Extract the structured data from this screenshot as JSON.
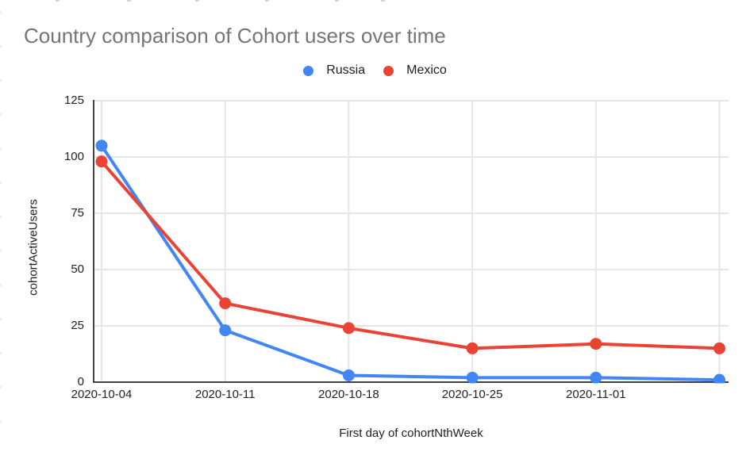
{
  "chart_data": {
    "type": "line",
    "title": "Country comparison of Cohort users over time",
    "xlabel": "First day of cohortNthWeek",
    "ylabel": "cohortActiveUsers",
    "categories": [
      "2020-10-04",
      "2020-10-11",
      "2020-10-18",
      "2020-10-25",
      "2020-11-01",
      ""
    ],
    "series": [
      {
        "name": "Russia",
        "color": "#4285F4",
        "values": [
          105,
          23,
          3,
          2,
          2,
          1
        ]
      },
      {
        "name": "Mexico",
        "color": "#EA4335",
        "values": [
          98,
          35,
          24,
          15,
          17,
          15
        ]
      }
    ],
    "y_ticks": [
      0,
      25,
      50,
      75,
      100,
      125
    ],
    "ylim": [
      0,
      125
    ],
    "legend_position": "top",
    "grid": true,
    "grid_color": "#e6e6e6",
    "axis_color": "#424242",
    "tick_text_color": "#222222",
    "title_color": "#757575"
  }
}
